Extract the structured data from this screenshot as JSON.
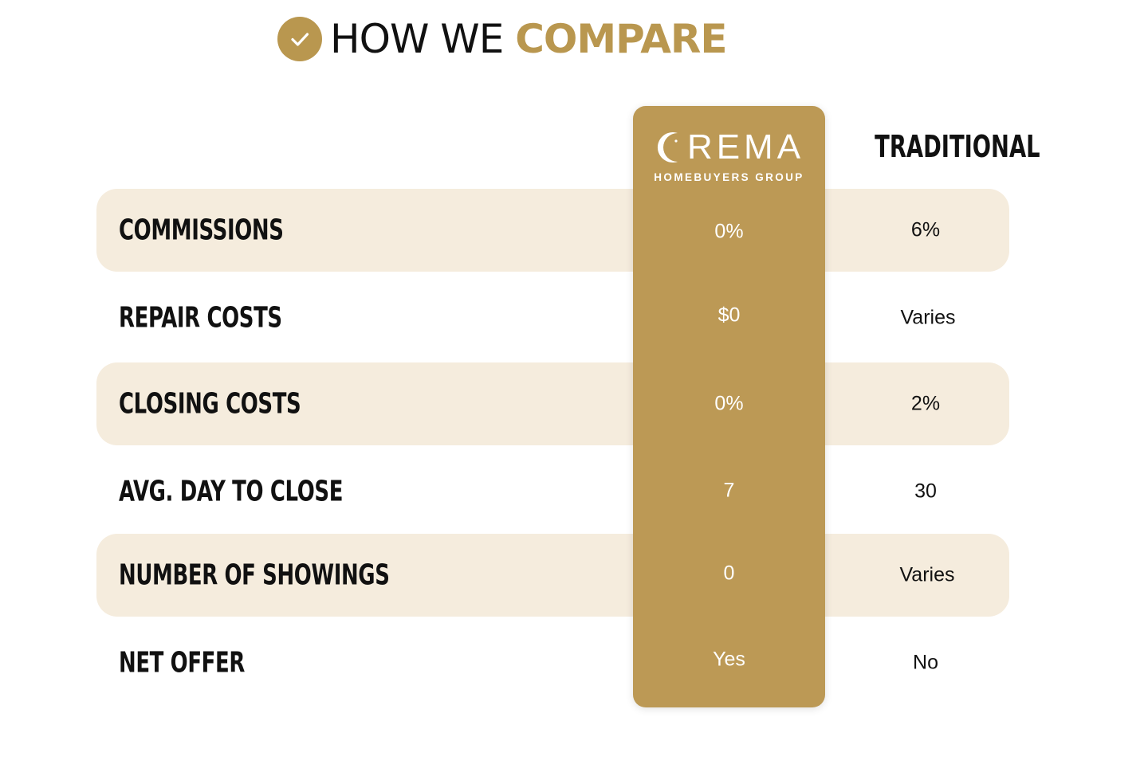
{
  "title": {
    "icon": "check-circle-icon",
    "part1": "HOW WE ",
    "part2": "COMPARE"
  },
  "colors": {
    "gold": "#bc9955",
    "gold_text": "#b9974f",
    "row_shade": "#f5ecdd",
    "text": "#111111"
  },
  "columns": {
    "crema": {
      "logo_icon": "crescent-moon-icon",
      "name": "REMA",
      "subtitle": "HOMEBUYERS GROUP"
    },
    "traditional": "TRADITIONAL"
  },
  "rows": [
    {
      "label": "COMMISSIONS",
      "crema": "0%",
      "traditional": "6%"
    },
    {
      "label": "REPAIR COSTS",
      "crema": "$0",
      "traditional": "Varies"
    },
    {
      "label": "CLOSING COSTS",
      "crema": "0%",
      "traditional": "2%"
    },
    {
      "label": "AVG. DAY TO CLOSE",
      "crema": "7",
      "traditional": "30"
    },
    {
      "label": "NUMBER OF SHOWINGS",
      "crema": "0",
      "traditional": "Varies"
    },
    {
      "label": "NET OFFER",
      "crema": "Yes",
      "traditional": "No"
    }
  ]
}
